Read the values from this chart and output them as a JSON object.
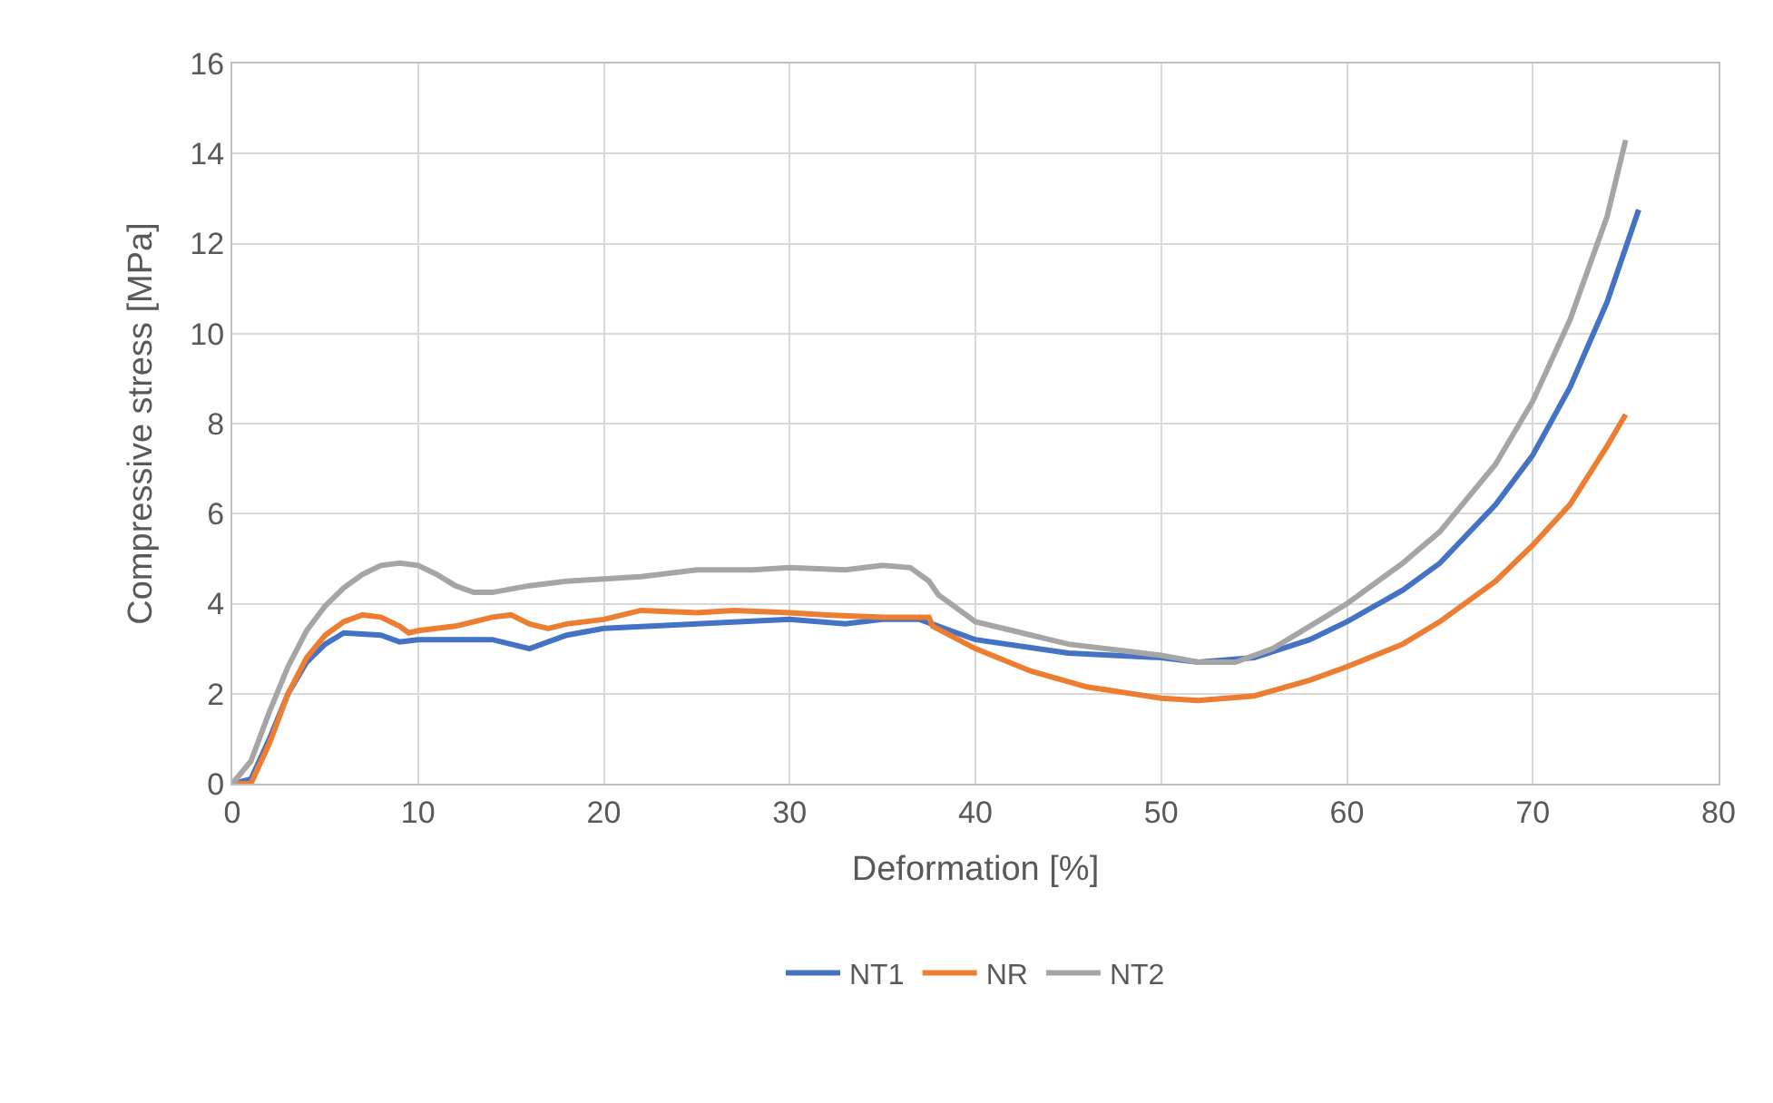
{
  "chart_data": {
    "type": "line",
    "xlabel": "Deformation [%]",
    "ylabel": "Compressive stress [MPa]",
    "xlim": [
      0,
      80
    ],
    "xticks": [
      0,
      10,
      20,
      30,
      40,
      50,
      60,
      70,
      80
    ],
    "ylim": [
      0,
      16
    ],
    "yticks": [
      0,
      2,
      4,
      6,
      8,
      10,
      12,
      14,
      16
    ],
    "grid": true,
    "legend": "bottom",
    "marker": "none",
    "line_style": "solid",
    "series": [
      {
        "name": "NT1",
        "color": "#4472c4",
        "x": [
          0,
          1,
          2,
          3,
          4,
          5,
          6,
          8,
          9,
          10,
          12,
          14,
          15,
          16,
          18,
          20,
          25,
          30,
          33,
          35,
          37,
          38,
          40,
          45,
          50,
          52,
          55,
          58,
          60,
          63,
          65,
          68,
          70,
          72,
          74,
          75.7
        ],
        "values": [
          0,
          0.1,
          1,
          2,
          2.7,
          3.1,
          3.35,
          3.3,
          3.15,
          3.2,
          3.2,
          3.2,
          3.1,
          3.0,
          3.3,
          3.45,
          3.55,
          3.65,
          3.55,
          3.65,
          3.65,
          3.5,
          3.2,
          2.9,
          2.8,
          2.7,
          2.8,
          3.2,
          3.6,
          4.3,
          4.9,
          6.2,
          7.3,
          8.8,
          10.7,
          12.75
        ]
      },
      {
        "name": "NR",
        "color": "#ed7d31",
        "x": [
          0,
          1,
          2,
          3,
          4,
          5,
          6,
          7,
          8,
          9,
          9.5,
          10,
          12,
          14,
          15,
          16,
          17,
          18,
          20,
          22,
          25,
          27,
          30,
          32,
          35,
          37.5,
          37.7,
          40,
          43,
          46,
          50,
          52,
          55,
          58,
          60,
          63,
          65,
          68,
          70,
          72,
          74,
          75
        ],
        "values": [
          0,
          0,
          0.9,
          2.0,
          2.8,
          3.3,
          3.6,
          3.75,
          3.7,
          3.5,
          3.35,
          3.4,
          3.5,
          3.7,
          3.75,
          3.55,
          3.45,
          3.55,
          3.65,
          3.85,
          3.8,
          3.85,
          3.8,
          3.75,
          3.7,
          3.7,
          3.5,
          3.0,
          2.5,
          2.15,
          1.9,
          1.85,
          1.95,
          2.3,
          2.6,
          3.1,
          3.6,
          4.5,
          5.3,
          6.2,
          7.5,
          8.2
        ]
      },
      {
        "name": "NT2",
        "color": "#a5a5a5",
        "x": [
          0,
          1,
          2,
          3,
          4,
          5,
          6,
          7,
          8,
          9,
          10,
          11,
          12,
          13,
          14,
          16,
          18,
          20,
          22,
          25,
          28,
          30,
          33,
          35,
          36.5,
          37.5,
          38,
          40,
          42,
          45,
          48,
          50,
          52,
          54,
          56,
          58,
          60,
          63,
          65,
          68,
          70,
          72,
          74,
          75
        ],
        "values": [
          0,
          0.5,
          1.6,
          2.6,
          3.4,
          3.95,
          4.35,
          4.65,
          4.85,
          4.9,
          4.85,
          4.65,
          4.4,
          4.25,
          4.25,
          4.4,
          4.5,
          4.55,
          4.6,
          4.75,
          4.75,
          4.8,
          4.75,
          4.85,
          4.8,
          4.5,
          4.2,
          3.6,
          3.4,
          3.1,
          2.95,
          2.85,
          2.7,
          2.7,
          3.0,
          3.5,
          4.0,
          4.9,
          5.6,
          7.1,
          8.5,
          10.3,
          12.6,
          14.3
        ]
      }
    ]
  }
}
